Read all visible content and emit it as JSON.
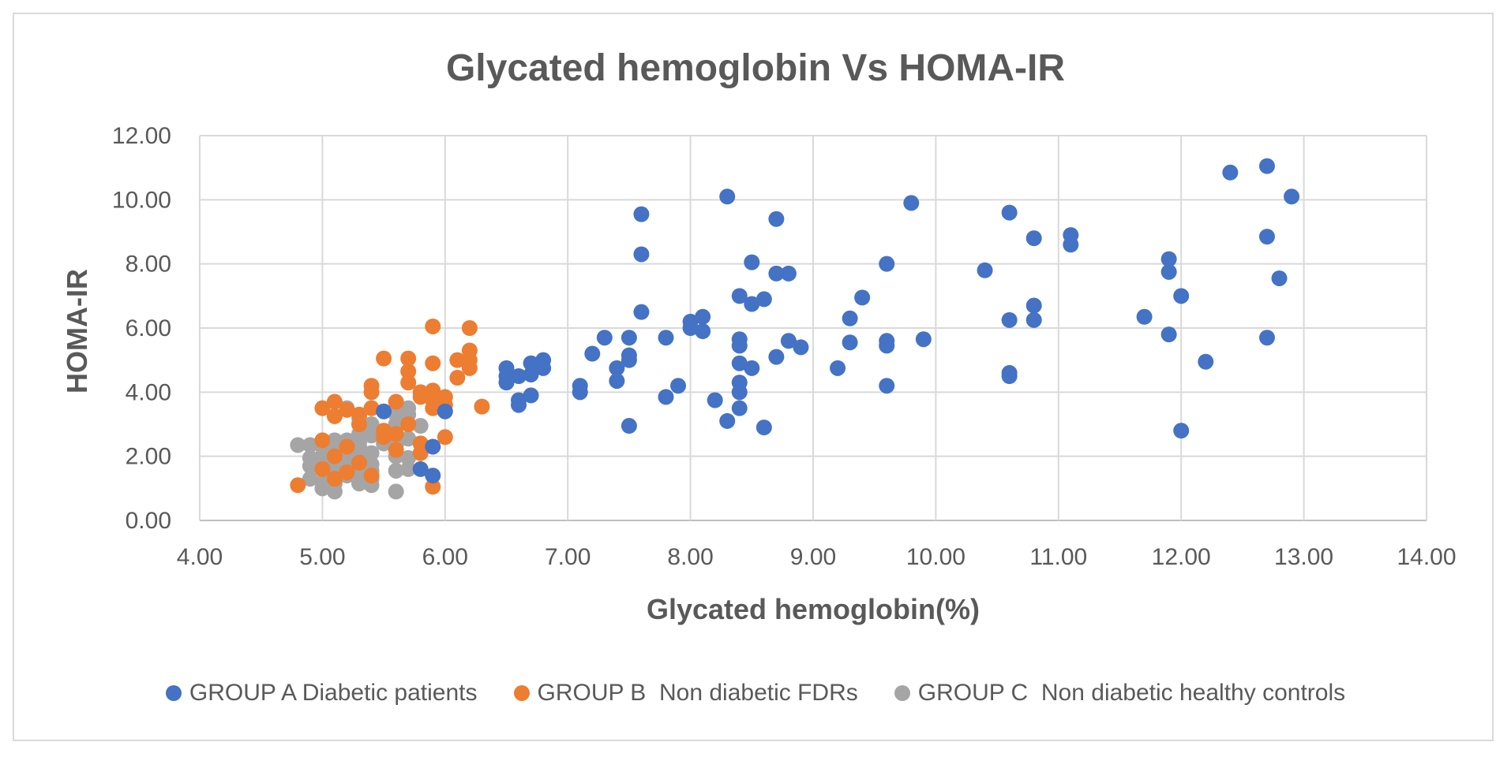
{
  "chart_data": {
    "type": "scatter",
    "title": "Glycated hemoglobin Vs HOMA-IR",
    "xlabel": "Glycated hemoglobin(%)",
    "ylabel": "HOMA-IR",
    "xlim": [
      4,
      14
    ],
    "ylim": [
      0,
      12
    ],
    "xticks": [
      "4.00",
      "5.00",
      "6.00",
      "7.00",
      "8.00",
      "9.00",
      "10.00",
      "11.00",
      "12.00",
      "13.00",
      "14.00"
    ],
    "yticks": [
      "0.00",
      "2.00",
      "4.00",
      "6.00",
      "8.00",
      "10.00",
      "12.00"
    ],
    "grid": true,
    "legend_position": "bottom",
    "series": [
      {
        "name": "GROUP A Diabetic patients",
        "color": "#4472c4",
        "points": [
          [
            7.6,
            9.55
          ],
          [
            8.3,
            10.1
          ],
          [
            8.7,
            9.4
          ],
          [
            9.8,
            9.9
          ],
          [
            10.6,
            9.6
          ],
          [
            10.8,
            8.8
          ],
          [
            11.1,
            8.9
          ],
          [
            11.1,
            8.6
          ],
          [
            12.4,
            10.85
          ],
          [
            12.7,
            11.05
          ],
          [
            12.9,
            10.1
          ],
          [
            12.7,
            8.85
          ],
          [
            11.9,
            8.15
          ],
          [
            11.9,
            7.75
          ],
          [
            12.8,
            7.55
          ],
          [
            12.0,
            7.0
          ],
          [
            11.7,
            6.35
          ],
          [
            11.9,
            5.8
          ],
          [
            12.7,
            5.7
          ],
          [
            12.2,
            4.95
          ],
          [
            12.0,
            2.8
          ],
          [
            10.4,
            7.8
          ],
          [
            10.8,
            6.7
          ],
          [
            10.6,
            6.25
          ],
          [
            10.8,
            6.25
          ],
          [
            10.6,
            4.6
          ],
          [
            10.6,
            4.5
          ],
          [
            9.6,
            8.0
          ],
          [
            9.4,
            6.95
          ],
          [
            9.3,
            6.3
          ],
          [
            9.3,
            5.55
          ],
          [
            9.6,
            5.6
          ],
          [
            9.6,
            5.45
          ],
          [
            9.9,
            5.65
          ],
          [
            9.6,
            4.2
          ],
          [
            9.2,
            4.75
          ],
          [
            8.5,
            8.05
          ],
          [
            8.7,
            7.7
          ],
          [
            8.8,
            7.7
          ],
          [
            8.4,
            7.0
          ],
          [
            8.5,
            6.75
          ],
          [
            8.6,
            6.9
          ],
          [
            8.8,
            5.6
          ],
          [
            8.9,
            5.4
          ],
          [
            8.7,
            5.1
          ],
          [
            8.4,
            5.65
          ],
          [
            8.4,
            5.45
          ],
          [
            8.4,
            4.9
          ],
          [
            8.5,
            4.75
          ],
          [
            8.4,
            4.3
          ],
          [
            8.4,
            4.0
          ],
          [
            8.4,
            3.5
          ],
          [
            8.3,
            3.1
          ],
          [
            8.6,
            2.9
          ],
          [
            8.2,
            3.75
          ],
          [
            7.6,
            8.3
          ],
          [
            7.6,
            6.5
          ],
          [
            8.1,
            6.35
          ],
          [
            8.0,
            6.2
          ],
          [
            8.0,
            6.0
          ],
          [
            8.1,
            5.9
          ],
          [
            7.8,
            5.7
          ],
          [
            7.9,
            4.2
          ],
          [
            7.8,
            3.85
          ],
          [
            7.3,
            5.7
          ],
          [
            7.5,
            5.7
          ],
          [
            7.5,
            5.15
          ],
          [
            7.5,
            5.0
          ],
          [
            7.2,
            5.2
          ],
          [
            7.4,
            4.75
          ],
          [
            7.4,
            4.35
          ],
          [
            7.1,
            4.2
          ],
          [
            7.1,
            4.0
          ],
          [
            7.5,
            2.95
          ],
          [
            6.8,
            5.0
          ],
          [
            6.7,
            4.9
          ],
          [
            6.8,
            4.75
          ],
          [
            6.7,
            4.55
          ],
          [
            6.6,
            4.5
          ],
          [
            6.5,
            4.75
          ],
          [
            6.5,
            4.5
          ],
          [
            6.5,
            4.3
          ],
          [
            6.7,
            3.9
          ],
          [
            6.6,
            3.75
          ],
          [
            6.6,
            3.6
          ],
          [
            6.0,
            3.4
          ],
          [
            5.9,
            2.3
          ],
          [
            5.8,
            1.6
          ],
          [
            5.9,
            1.4
          ],
          [
            5.5,
            3.4
          ]
        ]
      },
      {
        "name": "GROUP B  Non diabetic FDRs",
        "color": "#ed7d31",
        "points": [
          [
            5.9,
            6.05
          ],
          [
            6.2,
            6.0
          ],
          [
            6.2,
            5.3
          ],
          [
            6.2,
            5.0
          ],
          [
            6.1,
            5.0
          ],
          [
            6.2,
            4.75
          ],
          [
            5.5,
            5.05
          ],
          [
            5.7,
            5.05
          ],
          [
            5.7,
            4.65
          ],
          [
            5.9,
            4.9
          ],
          [
            6.1,
            4.45
          ],
          [
            5.4,
            4.2
          ],
          [
            5.4,
            4.0
          ],
          [
            5.7,
            4.3
          ],
          [
            5.8,
            4.0
          ],
          [
            5.9,
            4.05
          ],
          [
            5.8,
            3.85
          ],
          [
            6.0,
            3.85
          ],
          [
            5.9,
            3.75
          ],
          [
            6.0,
            3.6
          ],
          [
            5.9,
            3.5
          ],
          [
            5.6,
            3.7
          ],
          [
            5.1,
            3.7
          ],
          [
            5.0,
            3.5
          ],
          [
            5.2,
            3.45
          ],
          [
            5.3,
            3.3
          ],
          [
            5.1,
            3.25
          ],
          [
            5.4,
            3.5
          ],
          [
            5.3,
            3.0
          ],
          [
            6.3,
            3.55
          ],
          [
            5.5,
            2.8
          ],
          [
            5.5,
            2.6
          ],
          [
            5.6,
            2.7
          ],
          [
            5.8,
            2.4
          ],
          [
            5.8,
            2.1
          ],
          [
            5.6,
            2.2
          ],
          [
            5.0,
            2.5
          ],
          [
            5.2,
            2.3
          ],
          [
            5.1,
            2.0
          ],
          [
            5.3,
            1.8
          ],
          [
            5.0,
            1.6
          ],
          [
            5.2,
            1.5
          ],
          [
            5.4,
            1.4
          ],
          [
            5.1,
            1.3
          ],
          [
            4.8,
            1.1
          ],
          [
            5.9,
            1.05
          ],
          [
            6.0,
            2.6
          ],
          [
            5.7,
            3.0
          ]
        ]
      },
      {
        "name": "GROUP C  Non diabetic healthy controls",
        "color": "#a5a5a5",
        "points": [
          [
            5.2,
            3.5
          ],
          [
            5.4,
            3.5
          ],
          [
            5.7,
            3.5
          ],
          [
            5.6,
            3.3
          ],
          [
            5.7,
            3.3
          ],
          [
            5.3,
            3.2
          ],
          [
            5.3,
            3.0
          ],
          [
            5.4,
            3.0
          ],
          [
            5.6,
            3.0
          ],
          [
            5.8,
            2.95
          ],
          [
            5.3,
            2.7
          ],
          [
            5.4,
            2.65
          ],
          [
            5.6,
            2.6
          ],
          [
            5.7,
            2.55
          ],
          [
            5.1,
            2.5
          ],
          [
            5.2,
            2.5
          ],
          [
            5.3,
            2.45
          ],
          [
            5.5,
            2.4
          ],
          [
            5.6,
            2.35
          ],
          [
            5.8,
            2.4
          ],
          [
            4.8,
            2.35
          ],
          [
            4.9,
            2.35
          ],
          [
            5.0,
            2.3
          ],
          [
            5.1,
            2.2
          ],
          [
            5.2,
            2.15
          ],
          [
            5.3,
            2.1
          ],
          [
            5.4,
            2.1
          ],
          [
            5.6,
            2.0
          ],
          [
            5.7,
            1.95
          ],
          [
            5.0,
            2.0
          ],
          [
            4.9,
            1.95
          ],
          [
            5.1,
            1.85
          ],
          [
            5.2,
            1.8
          ],
          [
            5.3,
            1.75
          ],
          [
            5.4,
            1.75
          ],
          [
            4.9,
            1.7
          ],
          [
            5.0,
            1.7
          ],
          [
            5.2,
            1.6
          ],
          [
            5.3,
            1.6
          ],
          [
            5.4,
            1.55
          ],
          [
            5.6,
            1.55
          ],
          [
            5.7,
            1.6
          ],
          [
            5.1,
            1.45
          ],
          [
            5.2,
            1.4
          ],
          [
            5.3,
            1.35
          ],
          [
            5.4,
            1.3
          ],
          [
            4.9,
            1.3
          ],
          [
            5.0,
            1.2
          ],
          [
            5.1,
            1.15
          ],
          [
            5.3,
            1.15
          ],
          [
            5.4,
            1.1
          ],
          [
            5.0,
            1.0
          ],
          [
            5.1,
            0.9
          ],
          [
            5.6,
            0.9
          ],
          [
            5.2,
            2.0
          ],
          [
            5.3,
            2.3
          ]
        ]
      }
    ]
  }
}
